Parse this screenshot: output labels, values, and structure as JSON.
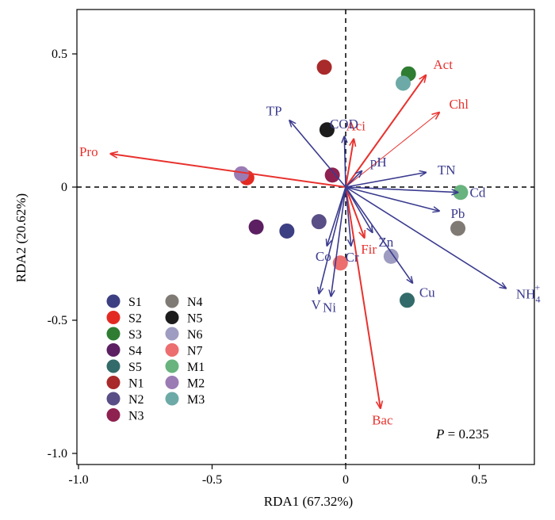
{
  "chart_data": {
    "type": "scatter",
    "xlabel": "RDA1 (67.32%)",
    "ylabel": "RDA2 (20.62%)",
    "xlim": [
      -1.0,
      0.7
    ],
    "ylim": [
      -1.05,
      0.67
    ],
    "xticks": [
      -1.0,
      -0.5,
      0,
      0.5
    ],
    "yticks": [
      -1.0,
      -0.5,
      0,
      0.5
    ],
    "xtick_labels": [
      "-1.0",
      "-0.5",
      "0",
      "0.5"
    ],
    "ytick_labels": [
      "-1.0",
      "-0.5",
      "0",
      "0.5"
    ],
    "grid": false,
    "zero_lines": "dashed",
    "annotation": {
      "prefix": "P",
      "text": " = 0.235"
    },
    "arrow_color_environment": "#3b3b8f",
    "arrow_color_species": "#e8322e",
    "environment_arrows": [
      {
        "label": "TP",
        "x": -0.21,
        "y": 0.25
      },
      {
        "label": "COD",
        "x": -0.005,
        "y": 0.19
      },
      {
        "label": "pH",
        "x": 0.06,
        "y": 0.06
      },
      {
        "label": "TN",
        "x": 0.3,
        "y": 0.055
      },
      {
        "label": "Cd",
        "x": 0.42,
        "y": -0.02
      },
      {
        "label": "Pb",
        "x": 0.35,
        "y": -0.09
      },
      {
        "label": "NH",
        "subscript": "4",
        "superscript": "+",
        "x": 0.6,
        "y": -0.38
      },
      {
        "label": "Cu",
        "x": 0.25,
        "y": -0.36
      },
      {
        "label": "Zn",
        "x": 0.1,
        "y": -0.17
      },
      {
        "label": "Cr",
        "x": 0.02,
        "y": -0.22
      },
      {
        "label": "Co",
        "x": -0.07,
        "y": -0.22
      },
      {
        "label": "Ni",
        "x": -0.055,
        "y": -0.41
      },
      {
        "label": "V",
        "x": -0.1,
        "y": -0.4
      }
    ],
    "species_arrows": [
      {
        "label": "Act",
        "x": 0.3,
        "y": 0.42,
        "thin": false
      },
      {
        "label": "Chl",
        "x": 0.35,
        "y": 0.28,
        "thin": true
      },
      {
        "label": "Aci",
        "x": 0.03,
        "y": 0.18,
        "thin": false
      },
      {
        "label": "Pro",
        "x": -0.88,
        "y": 0.125,
        "thin": false
      },
      {
        "label": "Fir",
        "x": 0.07,
        "y": -0.19,
        "thin": false
      },
      {
        "label": "Bac",
        "x": 0.13,
        "y": -0.83,
        "thin": false
      }
    ],
    "samples": [
      {
        "name": "S1",
        "color": "#3d3f83",
        "x": -0.22,
        "y": -0.165
      },
      {
        "name": "S2",
        "color": "#e32a22",
        "x": -0.37,
        "y": 0.035
      },
      {
        "name": "S3",
        "color": "#2e7d32",
        "x": 0.235,
        "y": 0.425
      },
      {
        "name": "S4",
        "color": "#5c1f62",
        "x": -0.335,
        "y": -0.15
      },
      {
        "name": "S5",
        "color": "#336b6a",
        "x": 0.23,
        "y": -0.425
      },
      {
        "name": "N1",
        "color": "#a92a2a",
        "x": -0.08,
        "y": 0.45
      },
      {
        "name": "N2",
        "color": "#5a4e86",
        "x": -0.1,
        "y": -0.13
      },
      {
        "name": "N3",
        "color": "#8e2150",
        "x": -0.05,
        "y": 0.045
      },
      {
        "name": "N4",
        "color": "#807a74",
        "x": 0.42,
        "y": -0.155
      },
      {
        "name": "N5",
        "color": "#1c1c1c",
        "x": -0.07,
        "y": 0.215
      },
      {
        "name": "N6",
        "color": "#9e9cc0",
        "x": 0.17,
        "y": -0.26
      },
      {
        "name": "N7",
        "color": "#ec6e6e",
        "x": -0.02,
        "y": -0.285
      },
      {
        "name": "M1",
        "color": "#69b37e",
        "x": 0.43,
        "y": -0.02
      },
      {
        "name": "M2",
        "color": "#9b7bb4",
        "x": -0.39,
        "y": 0.05
      },
      {
        "name": "M3",
        "color": "#6daaa7",
        "x": 0.215,
        "y": 0.39
      }
    ]
  }
}
